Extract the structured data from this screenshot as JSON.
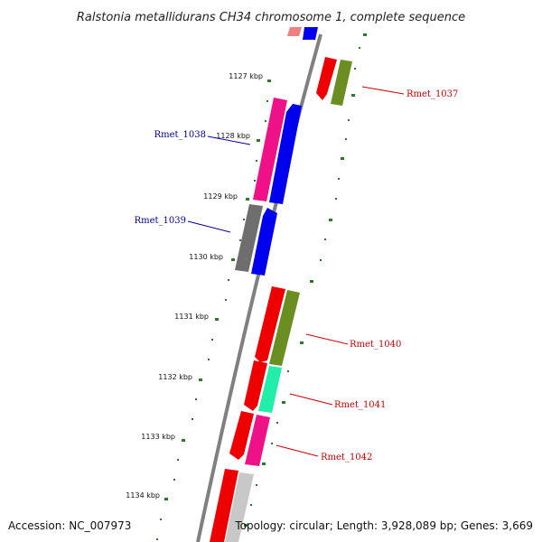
{
  "title": "Ralstonia metallidurans CH34 chromosome 1, complete sequence",
  "footer": {
    "accession": "Accession: NC_007973",
    "summary": "Topology: circular; Length: 3,928,089 bp; Genes: 3,669"
  },
  "ticks": [
    "1127 kbp",
    "1128 kbp",
    "1129 kbp",
    "1130 kbp",
    "1131 kbp",
    "1132 kbp",
    "1133 kbp",
    "1134 kbp"
  ],
  "gene_labels": [
    {
      "name": "Rmet_1037",
      "color": "#cc0000"
    },
    {
      "name": "Rmet_1038",
      "color": "#000099"
    },
    {
      "name": "Rmet_1039",
      "color": "#000099"
    },
    {
      "name": "Rmet_1040",
      "color": "#cc0000"
    },
    {
      "name": "Rmet_1041",
      "color": "#cc0000"
    },
    {
      "name": "Rmet_1042",
      "color": "#cc0000"
    }
  ],
  "colors": {
    "backbone": "#808080",
    "tick_marks": "#2a7a2a",
    "red_gene": "#ee0000",
    "blue_gene": "#0000ee",
    "magenta_gene": "#ee1188",
    "olive_gene": "#6b8e23",
    "gray_gene": "#6e6e6e",
    "aqua_gene": "#22eeaa",
    "light_gray_gene": "#c8c8c8",
    "pink_gene": "#f08080"
  }
}
